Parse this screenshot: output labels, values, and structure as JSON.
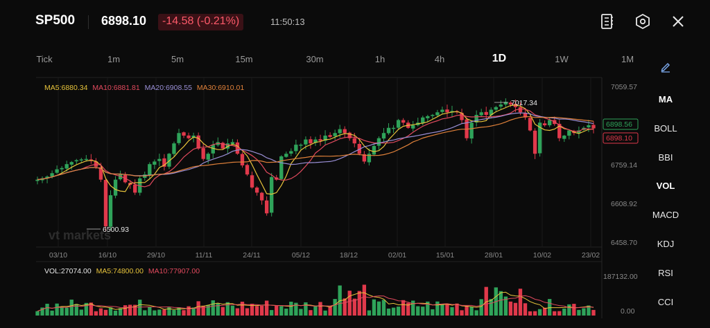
{
  "header": {
    "symbol": "SP500",
    "price": "6898.10",
    "change": "-14.58 (-0.21%)",
    "time": "11:50:13"
  },
  "icons": {
    "notebook": "notebook-icon",
    "settings": "settings-hex-icon",
    "close": "close-icon",
    "draw": "pencil-icon"
  },
  "tabs": [
    {
      "label": "Tick",
      "active": false
    },
    {
      "label": "1m",
      "active": false
    },
    {
      "label": "5m",
      "active": false
    },
    {
      "label": "15m",
      "active": false
    },
    {
      "label": "30m",
      "active": false
    },
    {
      "label": "1h",
      "active": false
    },
    {
      "label": "4h",
      "active": false
    },
    {
      "label": "1D",
      "active": true
    },
    {
      "label": "1W",
      "active": false
    },
    {
      "label": "1M",
      "active": false
    }
  ],
  "indicators": [
    "MA",
    "BOLL",
    "BBI",
    "VOL",
    "MACD",
    "KDJ",
    "RSI",
    "CCI"
  ],
  "colors": {
    "up": "#2fa35a",
    "down": "#e0394b",
    "ma5": "#e8c43b",
    "ma10": "#e24a5e",
    "ma20": "#9a8fd6",
    "ma30": "#e0813a",
    "bg": "#0b0b0b",
    "grid": "#222222"
  },
  "chart_data": {
    "type": "candlestick",
    "ma_legend": {
      "ma5": "MA5:6880.34",
      "ma10": "MA10:6881.81",
      "ma20": "MA20:6908.55",
      "ma30": "MA30:6910.01"
    },
    "y_ticks": [
      "7059.57",
      "6759.14",
      "6608.92",
      "6458.70"
    ],
    "ylim": [
      6458.7,
      7059.57
    ],
    "x_ticks": [
      "03/10",
      "16/10",
      "29/10",
      "11/11",
      "24/11",
      "05/12",
      "18/12",
      "02/01",
      "15/01",
      "28/01",
      "10/02",
      "23/02"
    ],
    "last_price_label": "6898.10",
    "ma_price_label": "6898.56",
    "high_annotation": "7017.34",
    "low_annotation": "6500.93",
    "watermark": "vt markets",
    "volume": {
      "legend_vol": "VOL:27074.00",
      "legend_ma5": "MA5:74800.00",
      "legend_ma10": "MA10:77907.00",
      "y_ticks": [
        "187132.00",
        "0.00"
      ],
      "ylim": [
        0,
        187132.0
      ]
    },
    "closes": [
      6700,
      6705,
      6712,
      6725,
      6740,
      6745,
      6760,
      6768,
      6775,
      6778,
      6780,
      6772,
      6750,
      6700,
      6520,
      6640,
      6700,
      6720,
      6690,
      6680,
      6650,
      6705,
      6720,
      6760,
      6770,
      6780,
      6750,
      6800,
      6840,
      6880,
      6870,
      6860,
      6870,
      6820,
      6780,
      6800,
      6835,
      6845,
      6820,
      6840,
      6845,
      6800,
      6755,
      6720,
      6670,
      6650,
      6620,
      6570,
      6710,
      6700,
      6790,
      6800,
      6810,
      6835,
      6835,
      6855,
      6840,
      6855,
      6850,
      6870,
      6865,
      6880,
      6895,
      6880,
      6860,
      6840,
      6800,
      6770,
      6800,
      6830,
      6860,
      6880,
      6900,
      6900,
      6930,
      6920,
      6900,
      6910,
      6920,
      6940,
      6945,
      6950,
      6960,
      6970,
      6960,
      6965,
      6960,
      6930,
      6860,
      6920,
      6950,
      6960,
      6950,
      6970,
      6980,
      6990,
      7000,
      6990,
      6980,
      6960,
      6940,
      6890,
      6800,
      6920,
      6910,
      6930,
      6915,
      6860,
      6870,
      6890,
      6880,
      6890,
      6900,
      6910,
      6898.1
    ]
  }
}
